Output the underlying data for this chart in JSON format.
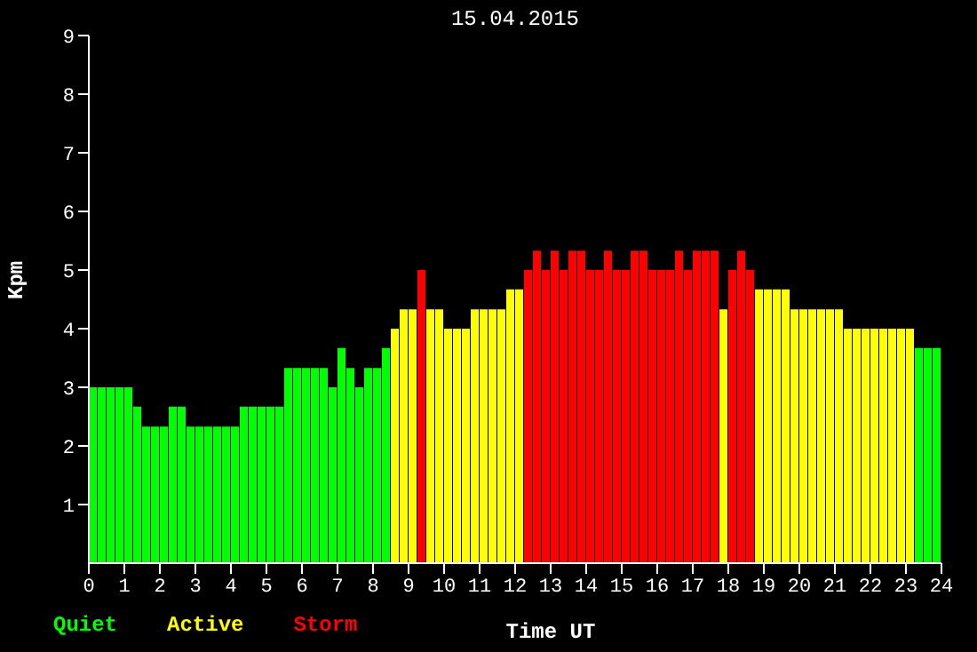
{
  "chart_data": {
    "type": "bar",
    "title": "15.04.2015",
    "xlabel": "Time UT",
    "ylabel": "Kpm",
    "stacked": true,
    "legend": "bottom left",
    "grid": false,
    "x": [
      0.125,
      0.375,
      0.625,
      0.875,
      1.125,
      1.375,
      1.625,
      1.875,
      2.125,
      2.375,
      2.625,
      2.875,
      3.125,
      3.375,
      3.625,
      3.875,
      4.125,
      4.375,
      4.625,
      4.875,
      5.125,
      5.375,
      5.625,
      5.875,
      6.125,
      6.375,
      6.625,
      6.875,
      7.125,
      7.375,
      7.625,
      7.875,
      8.125,
      8.375,
      8.625,
      8.875,
      9.125,
      9.375,
      9.625,
      9.875,
      10.125,
      10.375,
      10.625,
      10.875,
      11.125,
      11.375,
      11.625,
      11.875,
      12.125,
      12.375,
      12.625,
      12.875,
      13.125,
      13.375,
      13.625,
      13.875,
      14.125,
      14.375,
      14.625,
      14.875,
      15.125,
      15.375,
      15.625,
      15.875,
      16.125,
      16.375,
      16.625,
      16.875,
      17.125,
      17.375,
      17.625,
      17.875,
      18.125,
      18.375,
      18.625,
      18.875,
      19.125,
      19.375,
      19.625,
      19.875,
      20.125,
      20.375,
      20.625,
      20.875,
      21.125,
      21.375,
      21.625,
      21.875,
      22.125,
      22.375,
      22.625,
      22.875,
      23.125,
      23.375,
      23.625,
      23.875
    ],
    "series": [
      {
        "name": "Quiet",
        "color": "#00ff00",
        "values": [
          3,
          3,
          3,
          3,
          3,
          2.67,
          2.33,
          2.33,
          2.33,
          2.67,
          2.67,
          2.33,
          2.33,
          2.33,
          2.33,
          2.33,
          2.33,
          2.67,
          2.67,
          2.67,
          2.67,
          2.67,
          3.33,
          3.33,
          3.33,
          3.33,
          3.33,
          3,
          3.67,
          3.33,
          3,
          3.33,
          3.33,
          3.67,
          null,
          null,
          null,
          null,
          null,
          null,
          null,
          null,
          null,
          null,
          null,
          null,
          null,
          null,
          null,
          null,
          null,
          null,
          null,
          null,
          null,
          null,
          null,
          null,
          null,
          null,
          null,
          null,
          null,
          null,
          null,
          null,
          null,
          null,
          null,
          null,
          null,
          null,
          null,
          null,
          null,
          null,
          null,
          null,
          null,
          null,
          null,
          null,
          null,
          null,
          null,
          null,
          null,
          null,
          null,
          null,
          null,
          null,
          null,
          3.67,
          3.67,
          3.67
        ]
      },
      {
        "name": "Active",
        "color": "#ffff00",
        "values": [
          null,
          null,
          null,
          null,
          null,
          null,
          null,
          null,
          null,
          null,
          null,
          null,
          null,
          null,
          null,
          null,
          null,
          null,
          null,
          null,
          null,
          null,
          null,
          null,
          null,
          null,
          null,
          null,
          null,
          null,
          null,
          null,
          null,
          null,
          4,
          4.33,
          4.33,
          null,
          4.33,
          4.33,
          4,
          4,
          4,
          4.33,
          4.33,
          4.33,
          4.33,
          4.67,
          4.67,
          null,
          null,
          null,
          null,
          null,
          null,
          null,
          null,
          null,
          null,
          null,
          null,
          null,
          null,
          null,
          null,
          null,
          null,
          null,
          null,
          null,
          null,
          4.33,
          null,
          null,
          null,
          4.67,
          4.67,
          4.67,
          4.67,
          4.33,
          4.33,
          4.33,
          4.33,
          4.33,
          4.33,
          4,
          4,
          4,
          4,
          4,
          4,
          4,
          4,
          null,
          null,
          null
        ]
      },
      {
        "name": "Storm",
        "color": "#ff0000",
        "values": [
          null,
          null,
          null,
          null,
          null,
          null,
          null,
          null,
          null,
          null,
          null,
          null,
          null,
          null,
          null,
          null,
          null,
          null,
          null,
          null,
          null,
          null,
          null,
          null,
          null,
          null,
          null,
          null,
          null,
          null,
          null,
          null,
          null,
          null,
          null,
          null,
          null,
          5,
          null,
          null,
          null,
          null,
          null,
          null,
          null,
          null,
          null,
          null,
          null,
          5,
          5.33,
          5,
          5.33,
          5,
          5.33,
          5.33,
          5,
          5,
          5.33,
          5,
          5,
          5.33,
          5.33,
          5,
          5,
          5,
          5.33,
          5,
          5.33,
          5.33,
          5.33,
          null,
          5,
          5.33,
          5,
          null,
          null,
          null,
          null,
          null,
          null,
          null,
          null,
          null,
          null,
          null,
          null,
          null,
          null,
          null,
          null,
          null,
          null,
          null,
          null,
          null
        ]
      }
    ],
    "xlim": [
      0,
      24
    ],
    "xticks": [
      0,
      1,
      2,
      3,
      4,
      5,
      6,
      7,
      8,
      9,
      10,
      11,
      12,
      13,
      14,
      15,
      16,
      17,
      18,
      19,
      20,
      21,
      22,
      23,
      24
    ],
    "ylim": [
      0,
      9
    ],
    "yticks": [
      1,
      2,
      3,
      4,
      5,
      6,
      7,
      8,
      9
    ]
  }
}
